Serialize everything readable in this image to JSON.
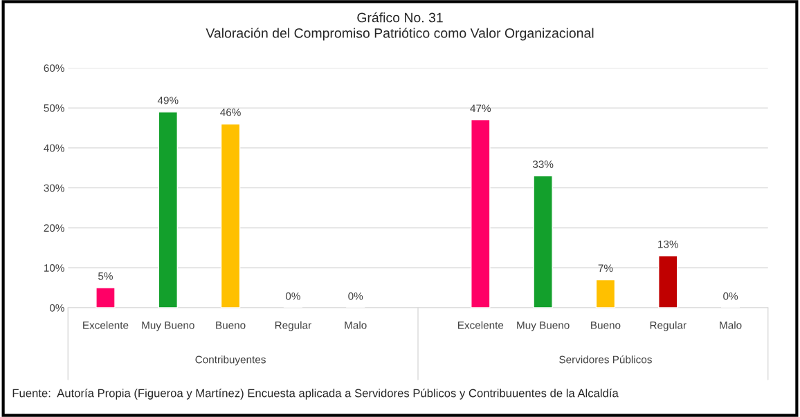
{
  "chart_data": {
    "type": "bar",
    "title": "Gráfico No. 31",
    "subtitle": "Valoración del Compromiso Patriótico como Valor Organizacional",
    "categories": [
      "Excelente",
      "Muy Bueno",
      "Bueno",
      "Regular",
      "Malo",
      null,
      "Excelente",
      "Muy Bueno",
      "Bueno",
      "Regular",
      "Malo"
    ],
    "values": [
      5,
      49,
      46,
      0,
      0,
      null,
      47,
      33,
      7,
      13,
      0
    ],
    "colors": [
      "#ff0066",
      "#13a02c",
      "#ffc000",
      null,
      null,
      null,
      "#ff0066",
      "#13a02c",
      "#ffc000",
      "#c00000",
      null
    ],
    "value_labels": [
      "5%",
      "49%",
      "46%",
      "0%",
      "0%",
      null,
      "47%",
      "33%",
      "7%",
      "13%",
      "0%"
    ],
    "ylim": [
      0,
      60
    ],
    "yticks": [
      {
        "value": 0,
        "label": "0%"
      },
      {
        "value": 10,
        "label": "10%"
      },
      {
        "value": 20,
        "label": "20%"
      },
      {
        "value": 30,
        "label": "30%"
      },
      {
        "value": 40,
        "label": "40%"
      },
      {
        "value": 50,
        "label": "50%"
      },
      {
        "value": 60,
        "label": "60%"
      }
    ],
    "grid": "y",
    "legend": false,
    "annotations": [
      "Contribuyentes",
      "Servidores Públicos",
      "Fuente:  Autoría Propia (Figueroa y Martínez) Encuesta aplicada a Servidores Públicos y Contribuuentes de la Alcaldía"
    ]
  }
}
